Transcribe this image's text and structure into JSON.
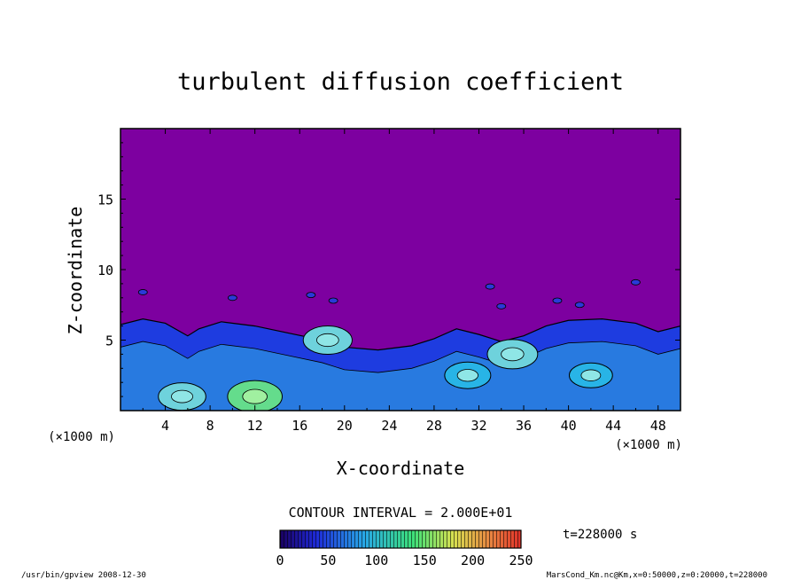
{
  "chart_data": {
    "type": "heatmap",
    "title": "turbulent diffusion coefficient",
    "xlabel": "X-coordinate",
    "ylabel": "Z-coordinate",
    "x_unit": "(×1000 m)",
    "y_unit": "(×1000 m)",
    "xlim": [
      0,
      50
    ],
    "ylim": [
      0,
      20
    ],
    "x_ticks": [
      4,
      8,
      12,
      16,
      20,
      24,
      28,
      32,
      36,
      40,
      44,
      48
    ],
    "y_ticks": [
      5,
      10,
      15
    ],
    "contour_interval": "CONTOUR INTERVAL = 2.000E+01",
    "colorbar": {
      "min": 0,
      "max": 250,
      "ticks": [
        0,
        50,
        100,
        150,
        200,
        250
      ]
    },
    "time_label": "t=228000 s",
    "background_color": "#7d00a0",
    "turbulent_layer_top": [
      {
        "x": 0,
        "z": 6.1
      },
      {
        "x": 2,
        "z": 6.5
      },
      {
        "x": 4,
        "z": 6.2
      },
      {
        "x": 6,
        "z": 5.3
      },
      {
        "x": 7,
        "z": 5.8
      },
      {
        "x": 9,
        "z": 6.3
      },
      {
        "x": 12,
        "z": 6.0
      },
      {
        "x": 15,
        "z": 5.5
      },
      {
        "x": 18,
        "z": 5.0
      },
      {
        "x": 20,
        "z": 4.5
      },
      {
        "x": 23,
        "z": 4.3
      },
      {
        "x": 26,
        "z": 4.6
      },
      {
        "x": 28,
        "z": 5.1
      },
      {
        "x": 30,
        "z": 5.8
      },
      {
        "x": 32,
        "z": 5.4
      },
      {
        "x": 34,
        "z": 4.9
      },
      {
        "x": 36,
        "z": 5.3
      },
      {
        "x": 38,
        "z": 6.0
      },
      {
        "x": 40,
        "z": 6.4
      },
      {
        "x": 43,
        "z": 6.5
      },
      {
        "x": 46,
        "z": 6.2
      },
      {
        "x": 48,
        "z": 5.6
      },
      {
        "x": 50,
        "z": 6.0
      }
    ],
    "high_value_patches": [
      {
        "x": 12.0,
        "z": 1.0,
        "value": 160
      },
      {
        "x": 18.5,
        "z": 5.0,
        "value": 120
      },
      {
        "x": 35.0,
        "z": 4.0,
        "value": 130
      },
      {
        "x": 5.5,
        "z": 1.0,
        "value": 110
      },
      {
        "x": 31.0,
        "z": 2.5,
        "value": 100
      },
      {
        "x": 42.0,
        "z": 2.5,
        "value": 80
      }
    ]
  },
  "footer": {
    "left": "/usr/bin/gpview   2008-12-30",
    "right": "MarsCond_Km.nc@Km,x=0:50000,z=0:20000,t=228000"
  },
  "colors": {
    "low": "#7d00a0",
    "mid_blue": "#1e64e6",
    "cyan": "#28b4e6",
    "light": "#6ed2dc",
    "green": "#64dc8c"
  }
}
